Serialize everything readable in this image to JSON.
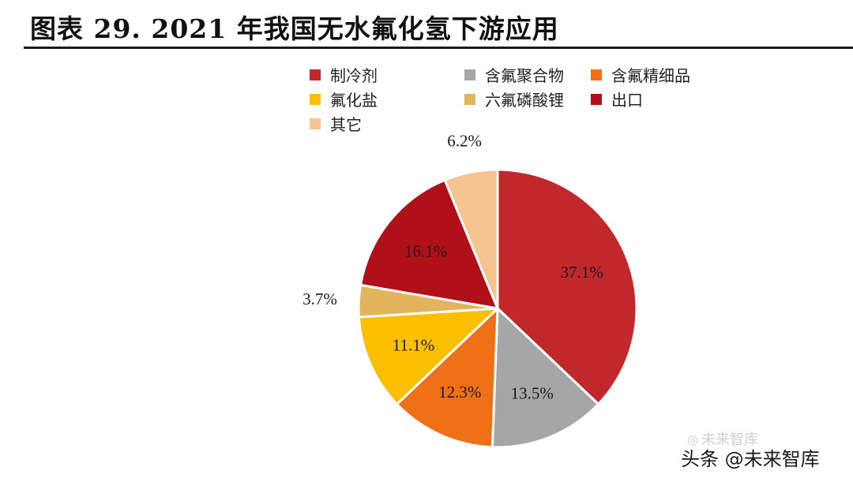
{
  "header": {
    "title": "图表 29. 2021 年我国无水氟化氢下游应用"
  },
  "chart_data": {
    "type": "pie",
    "title": "",
    "start_angle_deg": 0,
    "direction": "clockwise",
    "legend_position": "top",
    "slices": [
      {
        "name": "制冷剂",
        "value": 37.1,
        "label": "37.1%",
        "color": "#c0282b"
      },
      {
        "name": "含氟聚合物",
        "value": 13.5,
        "label": "13.5%",
        "color": "#a6a6a6"
      },
      {
        "name": "含氟精细品",
        "value": 12.3,
        "label": "12.3%",
        "color": "#f07018"
      },
      {
        "name": "氟化盐",
        "value": 11.1,
        "label": "11.1%",
        "color": "#fbbf00"
      },
      {
        "name": "六氟磷酸锂",
        "value": 3.7,
        "label": "3.7%",
        "color": "#e3b45e"
      },
      {
        "name": "出口",
        "value": 16.1,
        "label": "16.1%",
        "color": "#b01018"
      },
      {
        "name": "其它",
        "value": 6.2,
        "label": "6.2%",
        "color": "#f6c48e"
      }
    ]
  },
  "watermark": {
    "icon": "wechat-icon",
    "text": "未来智库"
  },
  "footer": {
    "text": "头条 @未来智库"
  }
}
